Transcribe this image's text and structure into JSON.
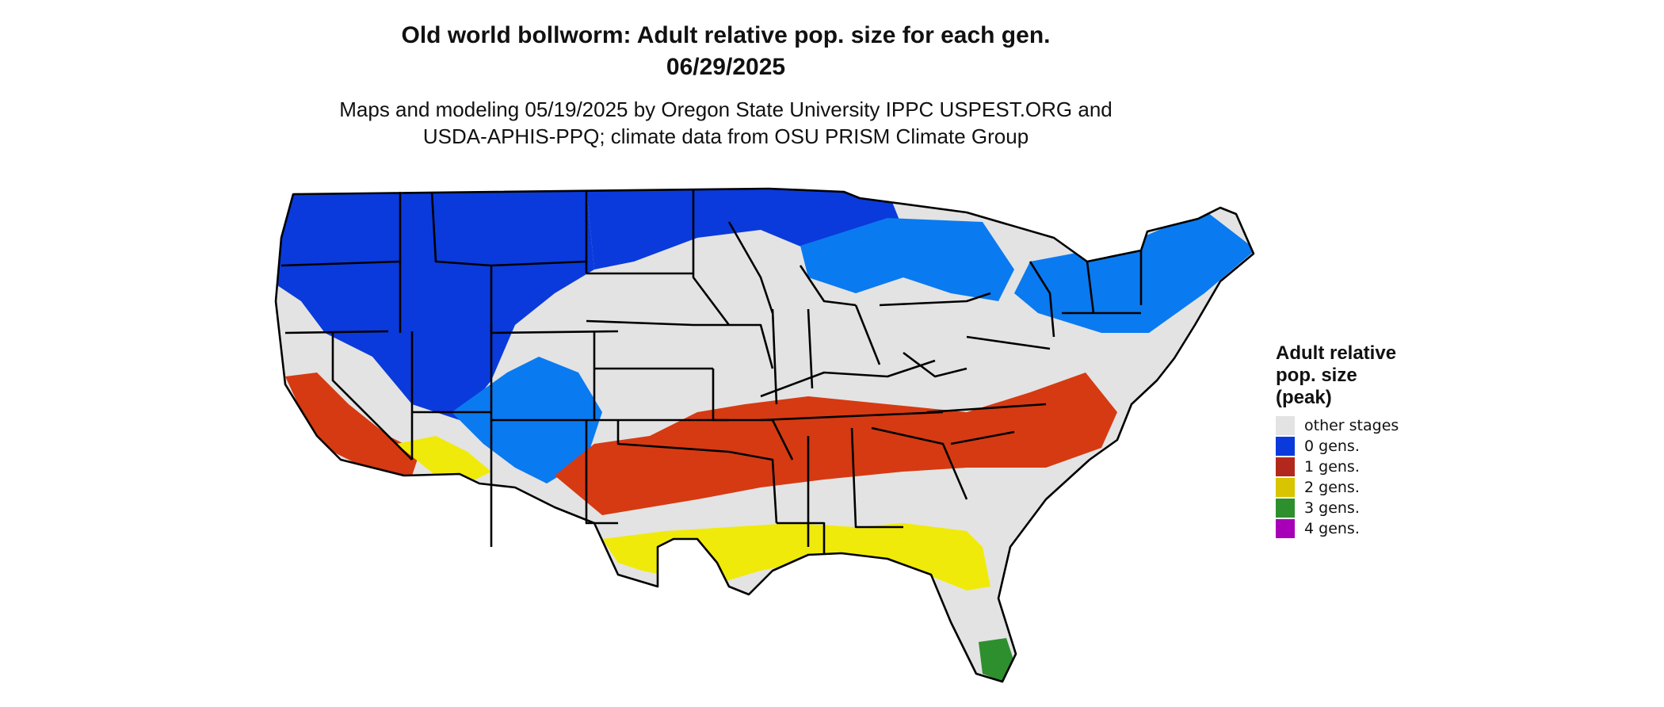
{
  "title": {
    "line1": "Old world bollworm: Adult relative pop. size for each gen.",
    "line2": "06/29/2025"
  },
  "subtitle": {
    "line1": "Maps and modeling 05/19/2025 by Oregon State University IPPC USPEST.ORG and",
    "line2": "USDA-APHIS-PPQ; climate data from OSU PRISM Climate Group"
  },
  "legend": {
    "title_lines": [
      "Adult relative",
      "pop. size",
      "(peak)"
    ],
    "items": [
      {
        "label": "other stages",
        "color": "#e3e3e3"
      },
      {
        "label": "0 gens.",
        "color": "#0a3adb"
      },
      {
        "label": "1 gens.",
        "color": "#b3281c"
      },
      {
        "label": "2 gens.",
        "color": "#d8c400"
      },
      {
        "label": "3 gens.",
        "color": "#2e8f2e"
      },
      {
        "label": "4 gens.",
        "color": "#a800b8"
      }
    ]
  },
  "map": {
    "background_color": "#e3e3e3",
    "border_color": "#000000",
    "zones": [
      {
        "name": "north-west",
        "color": "#0a3adb"
      },
      {
        "name": "north-east",
        "color": "#0a7af0"
      },
      {
        "name": "one-gen-band",
        "color": "#d63a12"
      },
      {
        "name": "two-gen-south",
        "color": "#f0ea0a"
      },
      {
        "name": "three-gen-tip",
        "color": "#2e8f2e"
      }
    ]
  }
}
